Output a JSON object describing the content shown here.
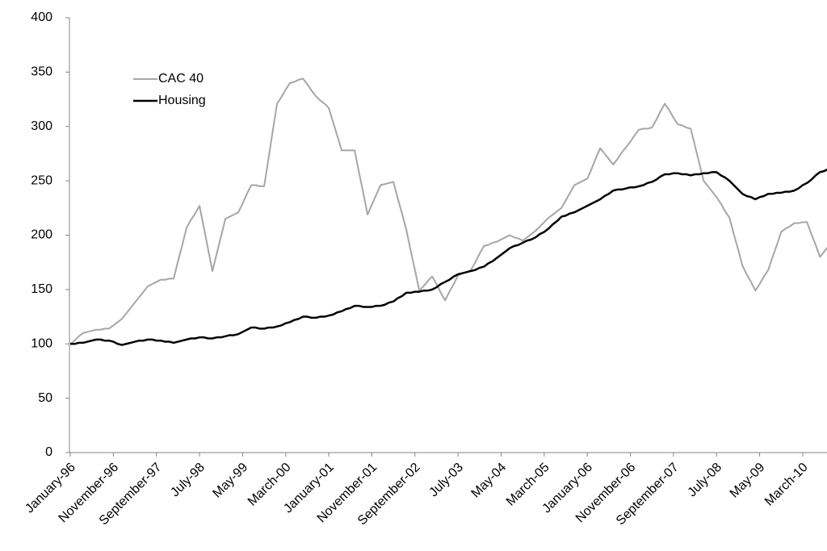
{
  "chart_data": {
    "type": "line",
    "categories": [
      "January-96",
      null,
      null,
      null,
      null,
      null,
      null,
      null,
      null,
      null,
      "November-96",
      null,
      null,
      null,
      null,
      null,
      null,
      null,
      null,
      null,
      "September-97",
      null,
      null,
      null,
      null,
      null,
      null,
      null,
      null,
      null,
      "July-98",
      null,
      null,
      null,
      null,
      null,
      null,
      null,
      null,
      null,
      "May-99",
      null,
      null,
      null,
      null,
      null,
      null,
      null,
      null,
      null,
      "March-00",
      null,
      null,
      null,
      null,
      null,
      null,
      null,
      null,
      null,
      "January-01",
      null,
      null,
      null,
      null,
      null,
      null,
      null,
      null,
      null,
      "November-01",
      null,
      null,
      null,
      null,
      null,
      null,
      null,
      null,
      null,
      "September-02",
      null,
      null,
      null,
      null,
      null,
      null,
      null,
      null,
      null,
      "July-03",
      null,
      null,
      null,
      null,
      null,
      null,
      null,
      null,
      null,
      "May-04",
      null,
      null,
      null,
      null,
      null,
      null,
      null,
      null,
      null,
      "March-05",
      null,
      null,
      null,
      null,
      null,
      null,
      null,
      null,
      null,
      "January-06",
      null,
      null,
      null,
      null,
      null,
      null,
      null,
      null,
      null,
      "November-06",
      null,
      null,
      null,
      null,
      null,
      null,
      null,
      null,
      null,
      "September-07",
      null,
      null,
      null,
      null,
      null,
      null,
      null,
      null,
      null,
      "July-08",
      null,
      null,
      null,
      null,
      null,
      null,
      null,
      null,
      null,
      "May-09",
      null,
      null,
      null,
      null,
      null,
      null,
      null,
      null,
      null,
      "March-10",
      null,
      null,
      null,
      null,
      null,
      null,
      null
    ],
    "series": [
      {
        "name": "CAC 40",
        "color": "#a6a6a6",
        "values": [
          100,
          103,
          107,
          110,
          111,
          112,
          113,
          113,
          114,
          114,
          117,
          120,
          123,
          128,
          133,
          138,
          143,
          148,
          153,
          155,
          157,
          159,
          159,
          160,
          160,
          176,
          191,
          207,
          214,
          220,
          227,
          207,
          187,
          167,
          183,
          199,
          215,
          217,
          219,
          221,
          229,
          238,
          246,
          246,
          245,
          245,
          270,
          296,
          321,
          327,
          334,
          340,
          341,
          343,
          344,
          339,
          333,
          328,
          324,
          321,
          317,
          304,
          291,
          278,
          278,
          278,
          278,
          258,
          239,
          219,
          228,
          237,
          246,
          247,
          248,
          249,
          234,
          220,
          205,
          186,
          168,
          149,
          153,
          158,
          162,
          155,
          147,
          140,
          148,
          155,
          163,
          165,
          166,
          168,
          175,
          183,
          190,
          191,
          193,
          194,
          196,
          198,
          200,
          198,
          197,
          195,
          198,
          201,
          204,
          208,
          212,
          216,
          219,
          222,
          225,
          232,
          239,
          246,
          248,
          250,
          252,
          261,
          271,
          280,
          275,
          270,
          265,
          270,
          276,
          281,
          286,
          292,
          297,
          298,
          298,
          299,
          306,
          314,
          321,
          315,
          308,
          302,
          301,
          299,
          298,
          282,
          266,
          250,
          245,
          240,
          235,
          229,
          222,
          216,
          201,
          187,
          172,
          164,
          157,
          149,
          155,
          162,
          168,
          180,
          191,
          203,
          206,
          208,
          211,
          211,
          212,
          212,
          201,
          191,
          180,
          185,
          190,
          195
        ]
      },
      {
        "name": "Housing",
        "color": "#000000",
        "values": [
          100,
          100,
          101,
          101,
          102,
          103,
          104,
          104,
          103,
          103,
          102,
          100,
          99,
          100,
          101,
          102,
          103,
          103,
          104,
          104,
          103,
          103,
          102,
          102,
          101,
          102,
          103,
          104,
          105,
          105,
          106,
          106,
          105,
          105,
          106,
          106,
          107,
          108,
          108,
          109,
          111,
          113,
          115,
          115,
          114,
          114,
          115,
          115,
          116,
          117,
          119,
          120,
          122,
          123,
          125,
          125,
          124,
          124,
          125,
          125,
          126,
          127,
          129,
          130,
          132,
          133,
          135,
          135,
          134,
          134,
          134,
          135,
          135,
          136,
          138,
          139,
          142,
          144,
          147,
          147,
          148,
          148,
          149,
          149,
          150,
          152,
          155,
          157,
          159,
          162,
          164,
          165,
          166,
          167,
          168,
          170,
          171,
          174,
          176,
          179,
          182,
          185,
          188,
          190,
          191,
          193,
          195,
          196,
          198,
          201,
          203,
          206,
          210,
          213,
          217,
          218,
          220,
          221,
          223,
          225,
          227,
          229,
          231,
          233,
          236,
          238,
          241,
          242,
          242,
          243,
          244,
          244,
          245,
          246,
          248,
          249,
          251,
          254,
          256,
          256,
          257,
          257,
          256,
          256,
          255,
          256,
          256,
          257,
          257,
          258,
          258,
          255,
          253,
          250,
          246,
          242,
          238,
          236,
          235,
          233,
          235,
          236,
          238,
          238,
          239,
          239,
          240,
          240,
          241,
          243,
          246,
          248,
          251,
          255,
          258,
          259,
          261,
          262
        ]
      }
    ],
    "ylim": [
      0,
      400
    ],
    "yticks": [
      0,
      50,
      100,
      150,
      200,
      250,
      300,
      350,
      400
    ],
    "grid": false,
    "legend": "upper left"
  }
}
